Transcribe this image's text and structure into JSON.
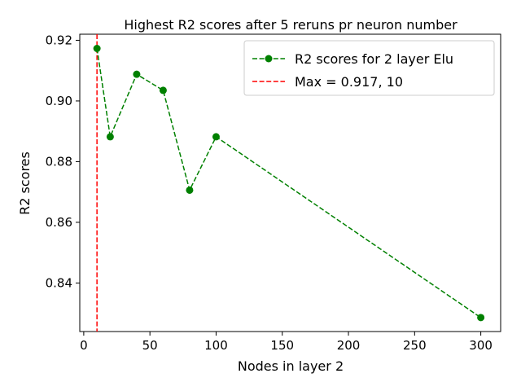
{
  "chart_data": {
    "type": "line",
    "title": "Highest R2 scores after 5 reruns pr neuron number",
    "xlabel": "Nodes in layer 2",
    "ylabel": "R2 scores",
    "xlim": [
      -3,
      315
    ],
    "ylim": [
      0.824,
      0.922
    ],
    "xticks": [
      0,
      50,
      100,
      150,
      200,
      250,
      300
    ],
    "yticks": [
      0.84,
      0.86,
      0.88,
      0.9,
      0.92
    ],
    "ytick_labels": [
      "0.84",
      "0.86",
      "0.88",
      "0.90",
      "0.92"
    ],
    "grid": false,
    "legend_position": "top-right",
    "series": [
      {
        "name": "R2 scores for 2 layer Elu",
        "color": "#008000",
        "line_style": "dashed",
        "marker": "circle",
        "x": [
          10,
          20,
          40,
          60,
          80,
          100,
          300
        ],
        "y": [
          0.9173,
          0.8882,
          0.9088,
          0.9035,
          0.8706,
          0.8882,
          0.8286
        ]
      }
    ],
    "reference_lines": [
      {
        "name": "Max = 0.917, 10",
        "orientation": "vertical",
        "x": 10,
        "color": "#ff0000",
        "line_style": "dashed"
      }
    ]
  }
}
